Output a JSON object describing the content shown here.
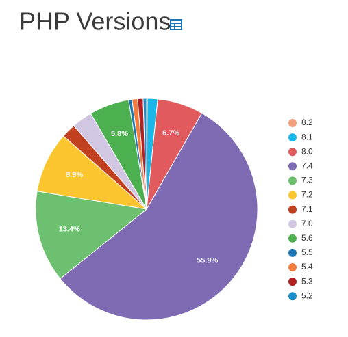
{
  "chart_data": {
    "type": "pie",
    "title": "PHP Versions",
    "categories": [
      "8.2",
      "8.1",
      "8.0",
      "7.4",
      "7.3",
      "7.2",
      "7.1",
      "7.0",
      "5.6",
      "5.5",
      "5.4",
      "5.3",
      "5.2"
    ],
    "values": [
      0.1,
      1.5,
      6.7,
      55.9,
      13.4,
      8.9,
      2.1,
      3.0,
      5.8,
      0.5,
      0.8,
      0.8,
      0.5
    ],
    "value_labels": [
      null,
      null,
      "6.7%",
      "55.9%",
      "13.4%",
      "8.9%",
      null,
      null,
      "5.8%",
      null,
      null,
      null,
      null
    ],
    "colors": [
      "#f2a07b",
      "#1ab7ea",
      "#e05a5e",
      "#7e6bb3",
      "#6cc070",
      "#fbc530",
      "#c0401f",
      "#d2c7e3",
      "#4caf50",
      "#1f77b4",
      "#f47c3c",
      "#b22222",
      "#1a8fc9"
    ],
    "legend": "right"
  }
}
